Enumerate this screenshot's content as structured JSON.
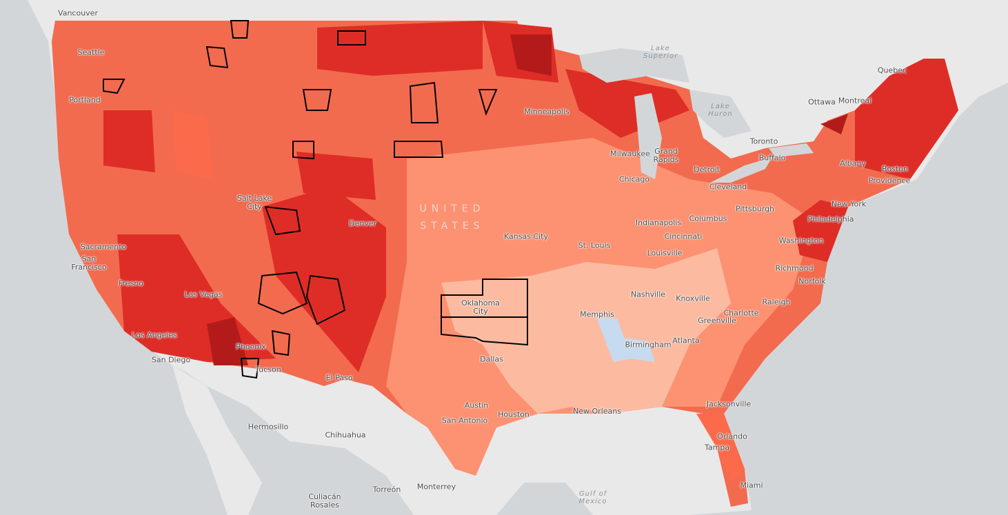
{
  "map": {
    "country": "UNITED STATES",
    "water": [
      "Lake Superior",
      "Lake Huron",
      "Gulf of Mexico"
    ],
    "places": [
      "Vancouver",
      "Seattle",
      "Portland",
      "Sacramento",
      "San Francisco",
      "Fresno",
      "Las Vegas",
      "Los Angeles",
      "San Diego",
      "Phoenix",
      "Tucson",
      "Salt Lake City",
      "Denver",
      "El Paso",
      "Hermosillo",
      "Chihuahua",
      "Torreón",
      "Monterrey",
      "Culiacán Rosales",
      "Dallas",
      "Austin",
      "San Antonio",
      "Houston",
      "New Orleans",
      "Oklahoma City",
      "Kansas City",
      "St. Louis",
      "Memphis",
      "Birmingham",
      "Atlanta",
      "Nashville",
      "Knoxville",
      "Louisville",
      "Indianapolis",
      "Cincinnati",
      "Columbus",
      "Chicago",
      "Milwaukee",
      "Grand Rapids",
      "Detroit",
      "Cleveland",
      "Pittsburgh",
      "Minneapolis",
      "Toronto",
      "Buffalo",
      "Ottawa",
      "Montreal",
      "Quebec",
      "Albany",
      "Boston",
      "Providence",
      "New York",
      "Philadelphia",
      "Washington",
      "Richmond",
      "Norfolk",
      "Raleigh",
      "Charlotte",
      "Greenville",
      "Jacksonville",
      "Orlando",
      "Tampa",
      "Miami"
    ]
  }
}
